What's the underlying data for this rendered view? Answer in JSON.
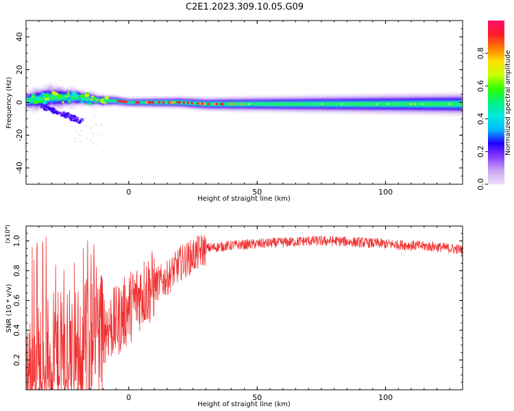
{
  "title": "C2E1.2023.309.10.05.G09",
  "chart_data": [
    {
      "type": "heatmap",
      "xlabel": "Height of straight line (km)",
      "ylabel": "Frequency (Hz)",
      "xlim": [
        -40,
        130
      ],
      "ylim": [
        -50,
        50
      ],
      "xticks": [
        0,
        50,
        100
      ],
      "yticks": [
        -40,
        -20,
        0,
        20,
        40
      ],
      "colorbar": {
        "label": "Normalized spectral amplitude",
        "range": [
          0.0,
          1.0
        ],
        "ticks": [
          "0.0",
          "0.2",
          "0.4",
          "0.6",
          "0.8"
        ],
        "tick_values": [
          0.0,
          0.2,
          0.4,
          0.6,
          0.8
        ],
        "colors": [
          "#ecdcf8",
          "#c8a8f0",
          "#8a3cff",
          "#2000ff",
          "#00b8ff",
          "#00e8e0",
          "#00f080",
          "#30ff00",
          "#c8ff00",
          "#ffe000",
          "#ff7a00",
          "#ff1a2a",
          "#ff1070"
        ]
      },
      "band_center": [
        [
          -40,
          1
        ],
        [
          -35,
          2
        ],
        [
          -30,
          3
        ],
        [
          -25,
          3
        ],
        [
          -20,
          3
        ],
        [
          -15,
          2
        ],
        [
          -10,
          1
        ],
        [
          -5,
          1
        ],
        [
          0,
          0
        ],
        [
          10,
          0
        ],
        [
          20,
          0
        ],
        [
          30,
          -1
        ],
        [
          50,
          -1
        ],
        [
          70,
          -1
        ],
        [
          100,
          -1
        ],
        [
          130,
          -1
        ]
      ],
      "band_halfwidth": [
        [
          -40,
          4
        ],
        [
          -30,
          5
        ],
        [
          -20,
          3.5
        ],
        [
          -10,
          2.5
        ],
        [
          0,
          2
        ],
        [
          20,
          2.5
        ],
        [
          40,
          3
        ],
        [
          70,
          3.5
        ],
        [
          100,
          4
        ],
        [
          130,
          4.5
        ]
      ]
    },
    {
      "type": "line",
      "xlabel": "Height of straight line (km)",
      "ylabel": "SNR (10 * v/v)",
      "multiplier": "(x10⁴)",
      "xlim": [
        -40,
        130
      ],
      "ylim": [
        0,
        1.1
      ],
      "xticks": [
        0,
        50,
        100
      ],
      "yticks": [
        0.2,
        0.4,
        0.6,
        0.8,
        1.0
      ],
      "ytick_labels": [
        "0.2",
        "0.4",
        "0.6",
        "0.8",
        "1.0"
      ],
      "color": "#f03030",
      "envelope": [
        [
          -40,
          0.1
        ],
        [
          -30,
          0.2
        ],
        [
          -20,
          0.25
        ],
        [
          -12,
          0.4
        ],
        [
          -5,
          0.45
        ],
        [
          0,
          0.55
        ],
        [
          5,
          0.65
        ],
        [
          10,
          0.7
        ],
        [
          15,
          0.75
        ],
        [
          20,
          0.85
        ],
        [
          25,
          0.9
        ],
        [
          30,
          0.95
        ],
        [
          40,
          0.97
        ],
        [
          50,
          0.98
        ],
        [
          60,
          0.99
        ],
        [
          70,
          1.0
        ],
        [
          80,
          1.0
        ],
        [
          90,
          0.99
        ],
        [
          100,
          0.98
        ],
        [
          110,
          0.97
        ],
        [
          120,
          0.96
        ],
        [
          130,
          0.94
        ]
      ]
    }
  ]
}
